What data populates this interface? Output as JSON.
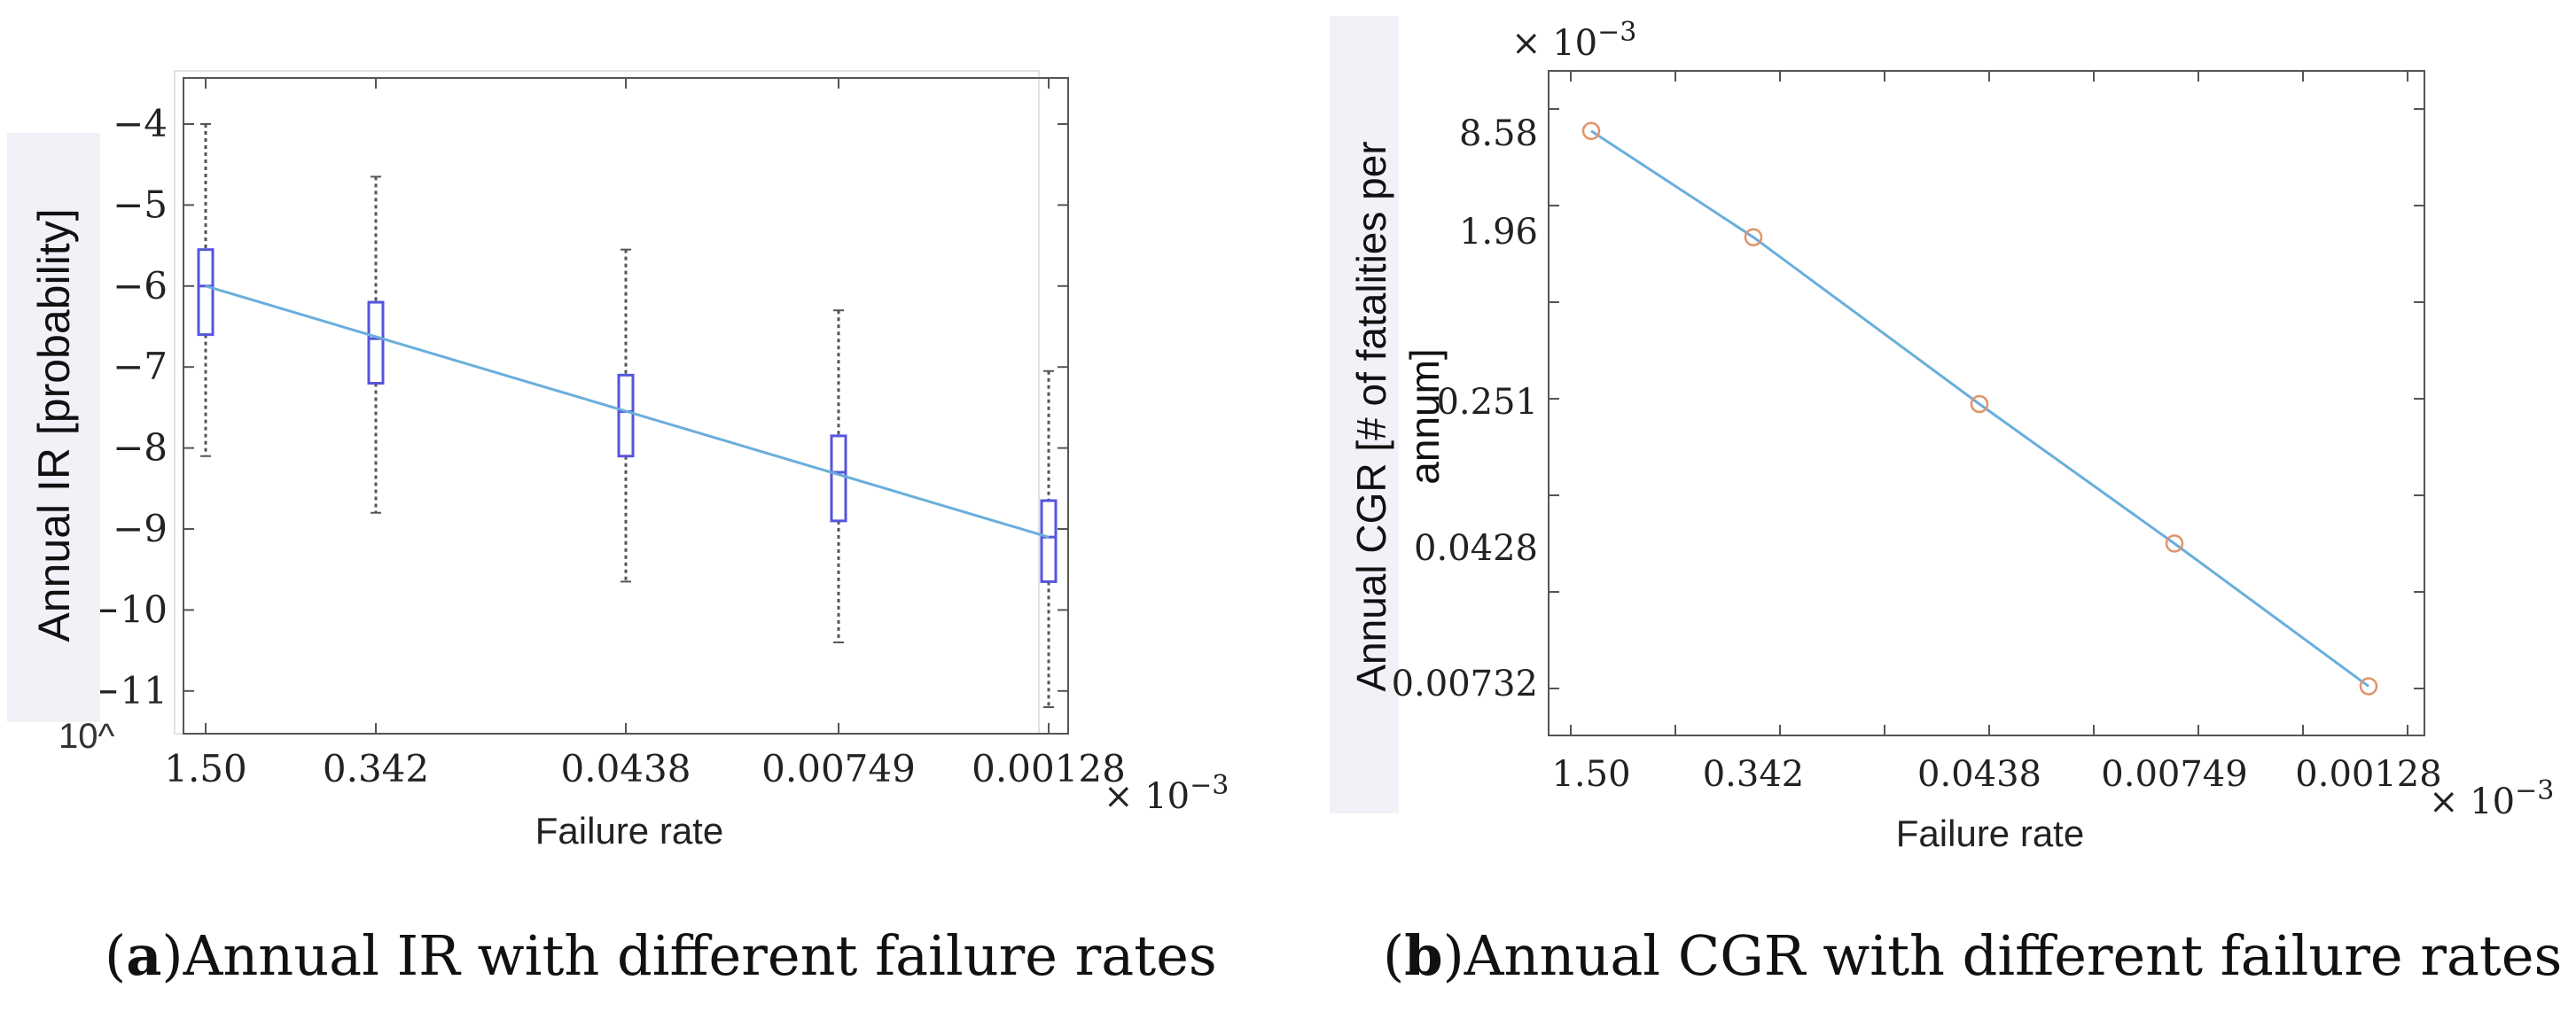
{
  "chart_data": [
    {
      "type": "box",
      "panel": "a",
      "categories": [
        "1.50",
        "0.342",
        "0.0438",
        "0.00749",
        "0.00128"
      ],
      "x_multiplier": "× 10",
      "x_multiplier_exp": "−3",
      "xlabel": "Failure rate",
      "ylabel": "Annual IR [probability]",
      "y_prefix": "10^",
      "yticks": [
        "−4",
        "−5",
        "−6",
        "−7",
        "−8",
        "−9",
        "−10",
        "−11"
      ],
      "ylim": [
        -11.5,
        -3.4
      ],
      "boxes": [
        {
          "whisker_low": -8.1,
          "q1": -6.6,
          "median": -6.0,
          "q3": -5.55,
          "whisker_high": -4.0
        },
        {
          "whisker_low": -8.8,
          "q1": -7.2,
          "median": -6.65,
          "q3": -6.2,
          "whisker_high": -4.65
        },
        {
          "whisker_low": -9.65,
          "q1": -8.1,
          "median": -7.55,
          "q3": -7.1,
          "whisker_high": -5.55
        },
        {
          "whisker_low": -10.4,
          "q1": -8.9,
          "median": -8.3,
          "q3": -7.85,
          "whisker_high": -6.3
        },
        {
          "whisker_low": -11.2,
          "q1": -9.65,
          "median": -9.1,
          "q3": -8.65,
          "whisker_high": -7.05
        }
      ],
      "trend_line": {
        "start": -6.0,
        "end": -9.1
      },
      "caption_letter": "a",
      "caption_text": "Annual IR with different failure rates",
      "colors": {
        "box": "#5555dd",
        "trend": "#6aaedb",
        "whisker": "#555555"
      }
    },
    {
      "type": "line",
      "panel": "b",
      "categories": [
        "1.50",
        "0.342",
        "0.0438",
        "0.00749",
        "0.00128"
      ],
      "x_multiplier": "× 10",
      "x_multiplier_exp": "−3",
      "y_multiplier": "× 10",
      "y_multiplier_exp": "−3",
      "xlabel": "Failure rate",
      "ylabel_line1": "Annual CGR  [# of fatalities per",
      "ylabel_line2": "annum]",
      "ytick_labels": [
        "8.58",
        "1.96",
        "0.251",
        "0.0428",
        "0.00732"
      ],
      "ytick_values": [
        8.58,
        1.96,
        0.251,
        0.0428,
        0.00732
      ],
      "yscale": "log",
      "ylim": [
        0.0055,
        12
      ],
      "values": [
        9.0,
        2.3,
        0.27,
        0.045,
        0.0072
      ],
      "caption_letter": "b",
      "caption_text": "Annual CGR with different failure rates",
      "colors": {
        "line": "#6aaedb",
        "marker": "#e0936a"
      }
    }
  ]
}
